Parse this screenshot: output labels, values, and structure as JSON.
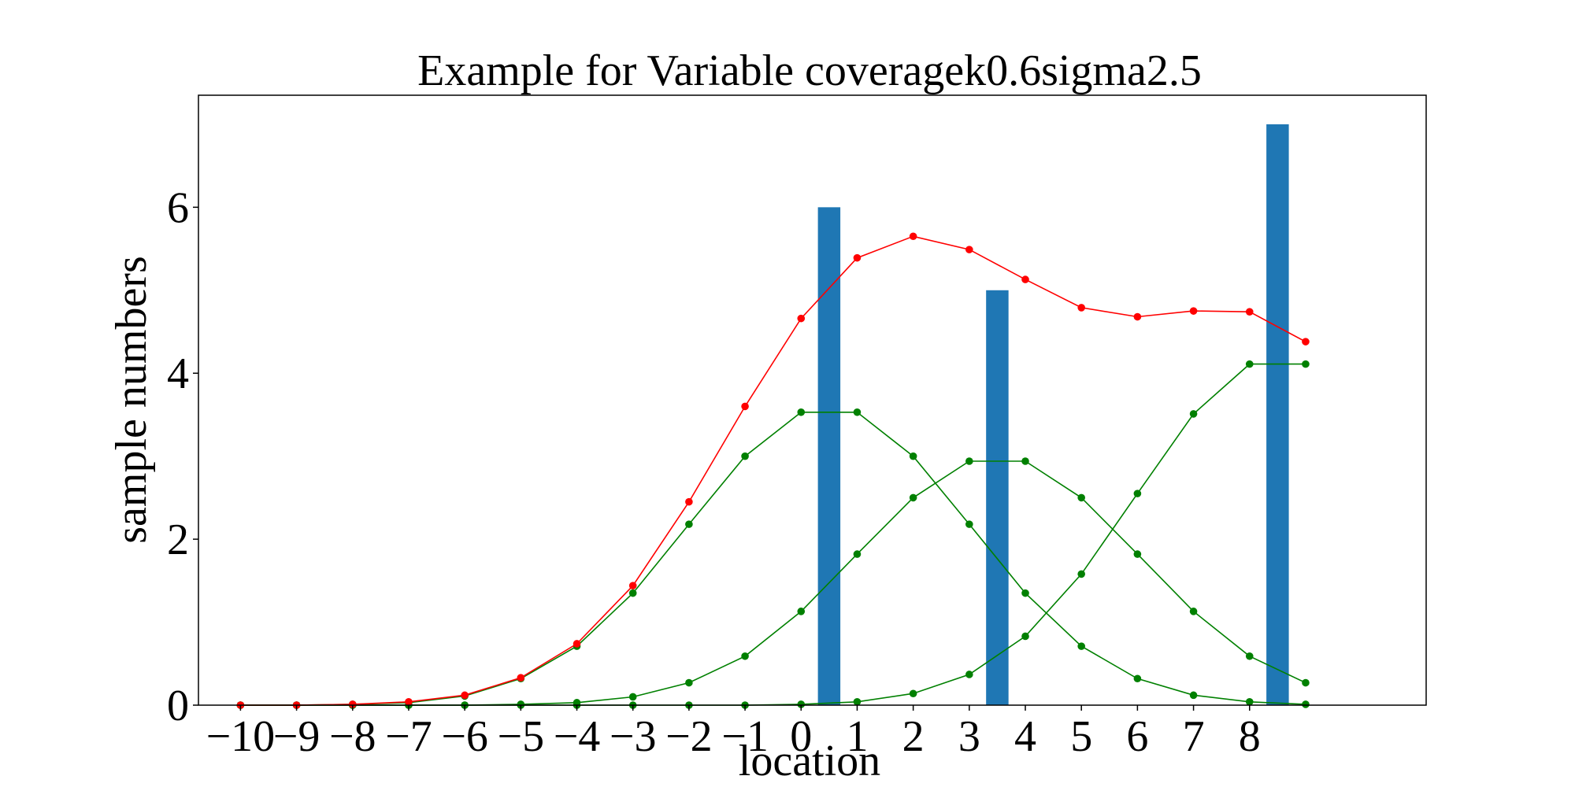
{
  "chart_data": {
    "type": "bar+line",
    "title": "Example for Variable coveragek0.6sigma2.5",
    "xlabel": "location",
    "ylabel": "sample numbers",
    "xlim": [
      -10.75,
      11.15
    ],
    "ylim": [
      0,
      7.35
    ],
    "xticks": [
      -10,
      -9,
      -8,
      -7,
      -6,
      -5,
      -4,
      -3,
      -2,
      -1,
      0,
      1,
      2,
      3,
      4,
      5,
      6,
      7,
      8
    ],
    "xtick_labels": [
      "−10",
      "−9",
      "−8",
      "−7",
      "−6",
      "−5",
      "−4",
      "−3",
      "−2",
      "−1",
      "0",
      "1",
      "2",
      "3",
      "4",
      "5",
      "6",
      "7",
      "8"
    ],
    "yticks": [
      0,
      2,
      4,
      6
    ],
    "ytick_labels": [
      "0",
      "2",
      "4",
      "6"
    ],
    "grid": false,
    "bars": {
      "color": "#1f77b4",
      "width": 0.4,
      "x": [
        0.5,
        3.5,
        8.5
      ],
      "values": [
        6,
        5,
        7
      ]
    },
    "x": [
      -10,
      -9,
      -8,
      -7,
      -6,
      -5,
      -4,
      -3,
      -2,
      -1,
      0,
      1,
      2,
      3,
      4,
      5,
      6,
      7,
      8,
      9
    ],
    "series": [
      {
        "color": "#ff0000",
        "values": [
          0.0,
          0.0,
          0.01,
          0.04,
          0.12,
          0.33,
          0.74,
          1.44,
          2.45,
          3.6,
          4.66,
          5.39,
          5.65,
          5.49,
          5.13,
          4.79,
          4.68,
          4.75,
          4.74,
          4.38
        ]
      },
      {
        "color": "#008000",
        "values": [
          0.0,
          0.0,
          0.01,
          0.03,
          0.11,
          0.32,
          0.71,
          1.35,
          2.18,
          3.0,
          3.53,
          3.53,
          3.0,
          2.18,
          1.35,
          0.71,
          0.32,
          0.12,
          0.04,
          0.01
        ]
      },
      {
        "color": "#008000",
        "values": [
          0.0,
          0.0,
          0.0,
          0.0,
          0.0,
          0.01,
          0.03,
          0.1,
          0.27,
          0.59,
          1.13,
          1.82,
          2.5,
          2.94,
          2.94,
          2.5,
          1.82,
          1.13,
          0.59,
          0.27
        ]
      },
      {
        "color": "#008000",
        "values": [
          0.0,
          0.0,
          0.0,
          0.0,
          0.0,
          0.0,
          0.0,
          0.0,
          0.0,
          0.0,
          0.01,
          0.04,
          0.14,
          0.37,
          0.83,
          1.58,
          2.55,
          3.51,
          4.11,
          4.11
        ]
      }
    ]
  }
}
